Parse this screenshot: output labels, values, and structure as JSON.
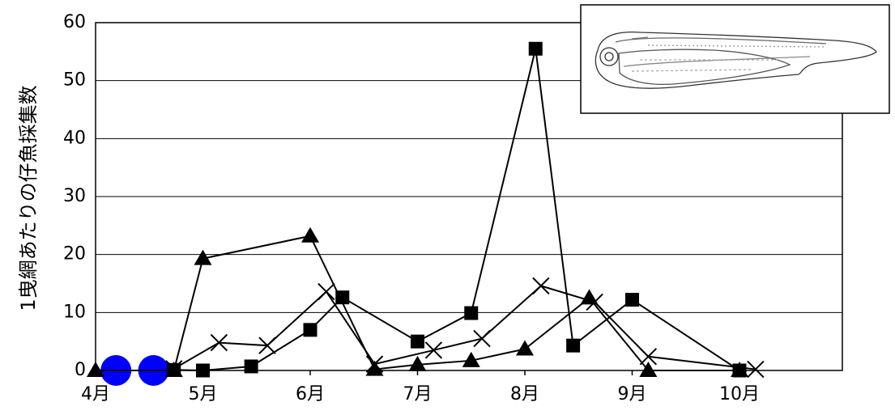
{
  "chart_data": {
    "type": "line",
    "title": "",
    "xlabel": "",
    "ylabel": "1曳網あたりの仔魚採集数",
    "ylim": [
      0,
      60
    ],
    "yticks": [
      0,
      10,
      20,
      30,
      40,
      50,
      60
    ],
    "xlim": [
      0,
      7
    ],
    "xticks": [
      {
        "x": 0,
        "label": "4月"
      },
      {
        "x": 1,
        "label": "5月"
      },
      {
        "x": 2,
        "label": "6月"
      },
      {
        "x": 3,
        "label": "7月"
      },
      {
        "x": 4,
        "label": "8月"
      },
      {
        "x": 5,
        "label": "9月"
      },
      {
        "x": 6,
        "label": "10月"
      }
    ],
    "grid": true,
    "legend": "none",
    "series": [
      {
        "marker": "circle",
        "color": "#0000ff",
        "points": [
          [
            0.19,
            0
          ],
          [
            0.54,
            0
          ]
        ]
      },
      {
        "marker": "triangle",
        "color": "#000000",
        "points": [
          [
            0.0,
            0
          ],
          [
            0.73,
            0
          ],
          [
            1.0,
            19.3
          ],
          [
            2.0,
            23.2
          ],
          [
            2.6,
            0.2
          ],
          [
            3.0,
            1.0
          ],
          [
            3.5,
            1.7
          ],
          [
            4.0,
            3.7
          ],
          [
            4.6,
            12.5
          ],
          [
            5.15,
            0
          ],
          [
            6.0,
            0
          ]
        ]
      },
      {
        "marker": "square",
        "color": "#000000",
        "points": [
          [
            0.73,
            0.1
          ],
          [
            1.0,
            0
          ],
          [
            1.45,
            0.7
          ],
          [
            2.0,
            7.0
          ],
          [
            2.3,
            12.6
          ],
          [
            3.0,
            5.0
          ],
          [
            3.5,
            9.9
          ],
          [
            4.1,
            55.5
          ],
          [
            4.45,
            4.3
          ],
          [
            5.0,
            12.2
          ],
          [
            6.0,
            0
          ]
        ]
      },
      {
        "marker": "cross",
        "color": "#000000",
        "points": [
          [
            0.73,
            0.3
          ],
          [
            1.15,
            4.8
          ],
          [
            1.6,
            4.3
          ],
          [
            2.15,
            13.6
          ],
          [
            2.6,
            1.1
          ],
          [
            3.15,
            3.5
          ],
          [
            3.6,
            5.5
          ],
          [
            4.15,
            14.6
          ],
          [
            4.65,
            11.8
          ],
          [
            5.15,
            2.4
          ],
          [
            6.15,
            0.2
          ]
        ]
      }
    ]
  }
}
